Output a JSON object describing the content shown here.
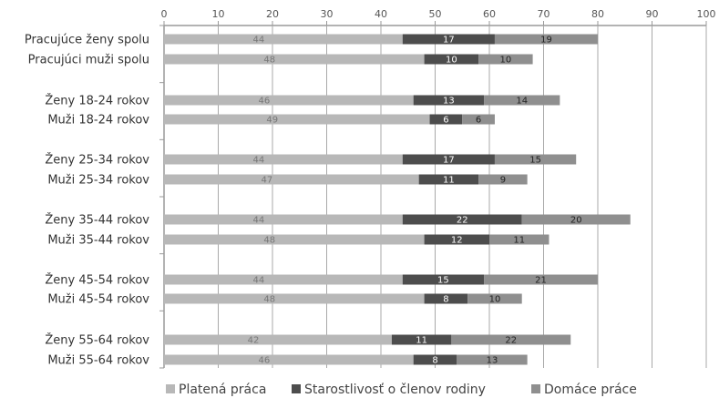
{
  "chart_data": {
    "type": "bar",
    "orientation": "horizontal",
    "stacked": true,
    "xlim": [
      0,
      100
    ],
    "xticks": [
      0,
      10,
      20,
      30,
      40,
      50,
      60,
      70,
      80,
      90,
      100
    ],
    "grid": true,
    "legend_position": "bottom",
    "categories": [
      "Pracujúce ženy spolu",
      "Pracujúci muži spolu",
      "Ženy 18-24 rokov",
      "Muži 18-24 rokov",
      "Ženy 25-34 rokov",
      "Muži 25-34 rokov",
      "Ženy 35-44 rokov",
      "Muži 35-44 rokov",
      "Ženy 45-54 rokov",
      "Muži 45-54 rokov",
      "Ženy 55-64 rokov",
      "Muži 55-64 rokov"
    ],
    "series": [
      {
        "name": "Platená práca",
        "color": "#b8b8b8",
        "label_color": "#777777",
        "values": [
          44,
          48,
          46,
          49,
          44,
          47,
          44,
          48,
          44,
          48,
          42,
          46
        ]
      },
      {
        "name": "Starostlivosť o členov rodiny",
        "color": "#4d4d4d",
        "label_color": "#ffffff",
        "values": [
          17,
          10,
          13,
          6,
          17,
          11,
          22,
          12,
          15,
          8,
          11,
          8
        ]
      },
      {
        "name": "Domáce práce",
        "color": "#8f8f8f",
        "label_color": "#222222",
        "values": [
          19,
          10,
          14,
          6,
          15,
          9,
          20,
          11,
          21,
          10,
          22,
          13
        ]
      }
    ]
  }
}
